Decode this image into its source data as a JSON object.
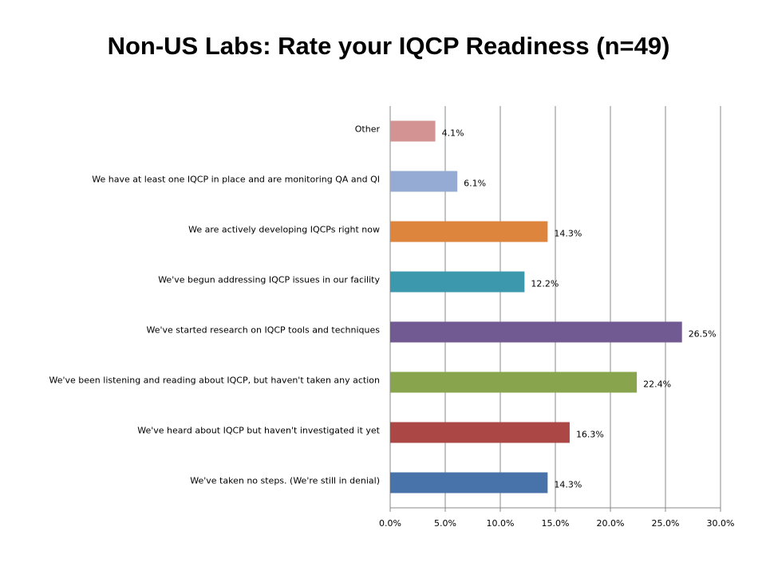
{
  "chart_data": {
    "type": "hbar",
    "title": "Non-US Labs: Rate your IQCP Readiness (n=49)",
    "categories": [
      "Other",
      "We have at least one IQCP in place and are monitoring QA and QI",
      "We are actively developing IQCPs right now",
      "We've begun addressing IQCP issues in our facility",
      "We've started research on IQCP tools and techniques",
      "We've been listening and reading about IQCP, but haven't taken any action",
      "We've heard about IQCP but haven't investigated it yet",
      "We've taken no steps. (We're still in denial)"
    ],
    "values": [
      4.1,
      6.1,
      14.3,
      12.2,
      26.5,
      22.4,
      16.3,
      14.3
    ],
    "value_labels": [
      "4.1%",
      "6.1%",
      "14.3%",
      "12.2%",
      "26.5%",
      "22.4%",
      "16.3%",
      "14.3%"
    ],
    "colors": [
      "#d39392",
      "#95abd3",
      "#dd843d",
      "#3c98ad",
      "#715a91",
      "#88a54e",
      "#ab4846",
      "#4773aa"
    ],
    "xlim": [
      0,
      30
    ],
    "xticks": [
      {
        "value": 0,
        "label": "0.0%"
      },
      {
        "value": 5,
        "label": "5.0%"
      },
      {
        "value": 10,
        "label": "10.0%"
      },
      {
        "value": 15,
        "label": "15.0%"
      },
      {
        "value": 20,
        "label": "20.0%"
      },
      {
        "value": 25,
        "label": "25.0%"
      },
      {
        "value": 30,
        "label": "30.0%"
      }
    ],
    "grid": true
  }
}
